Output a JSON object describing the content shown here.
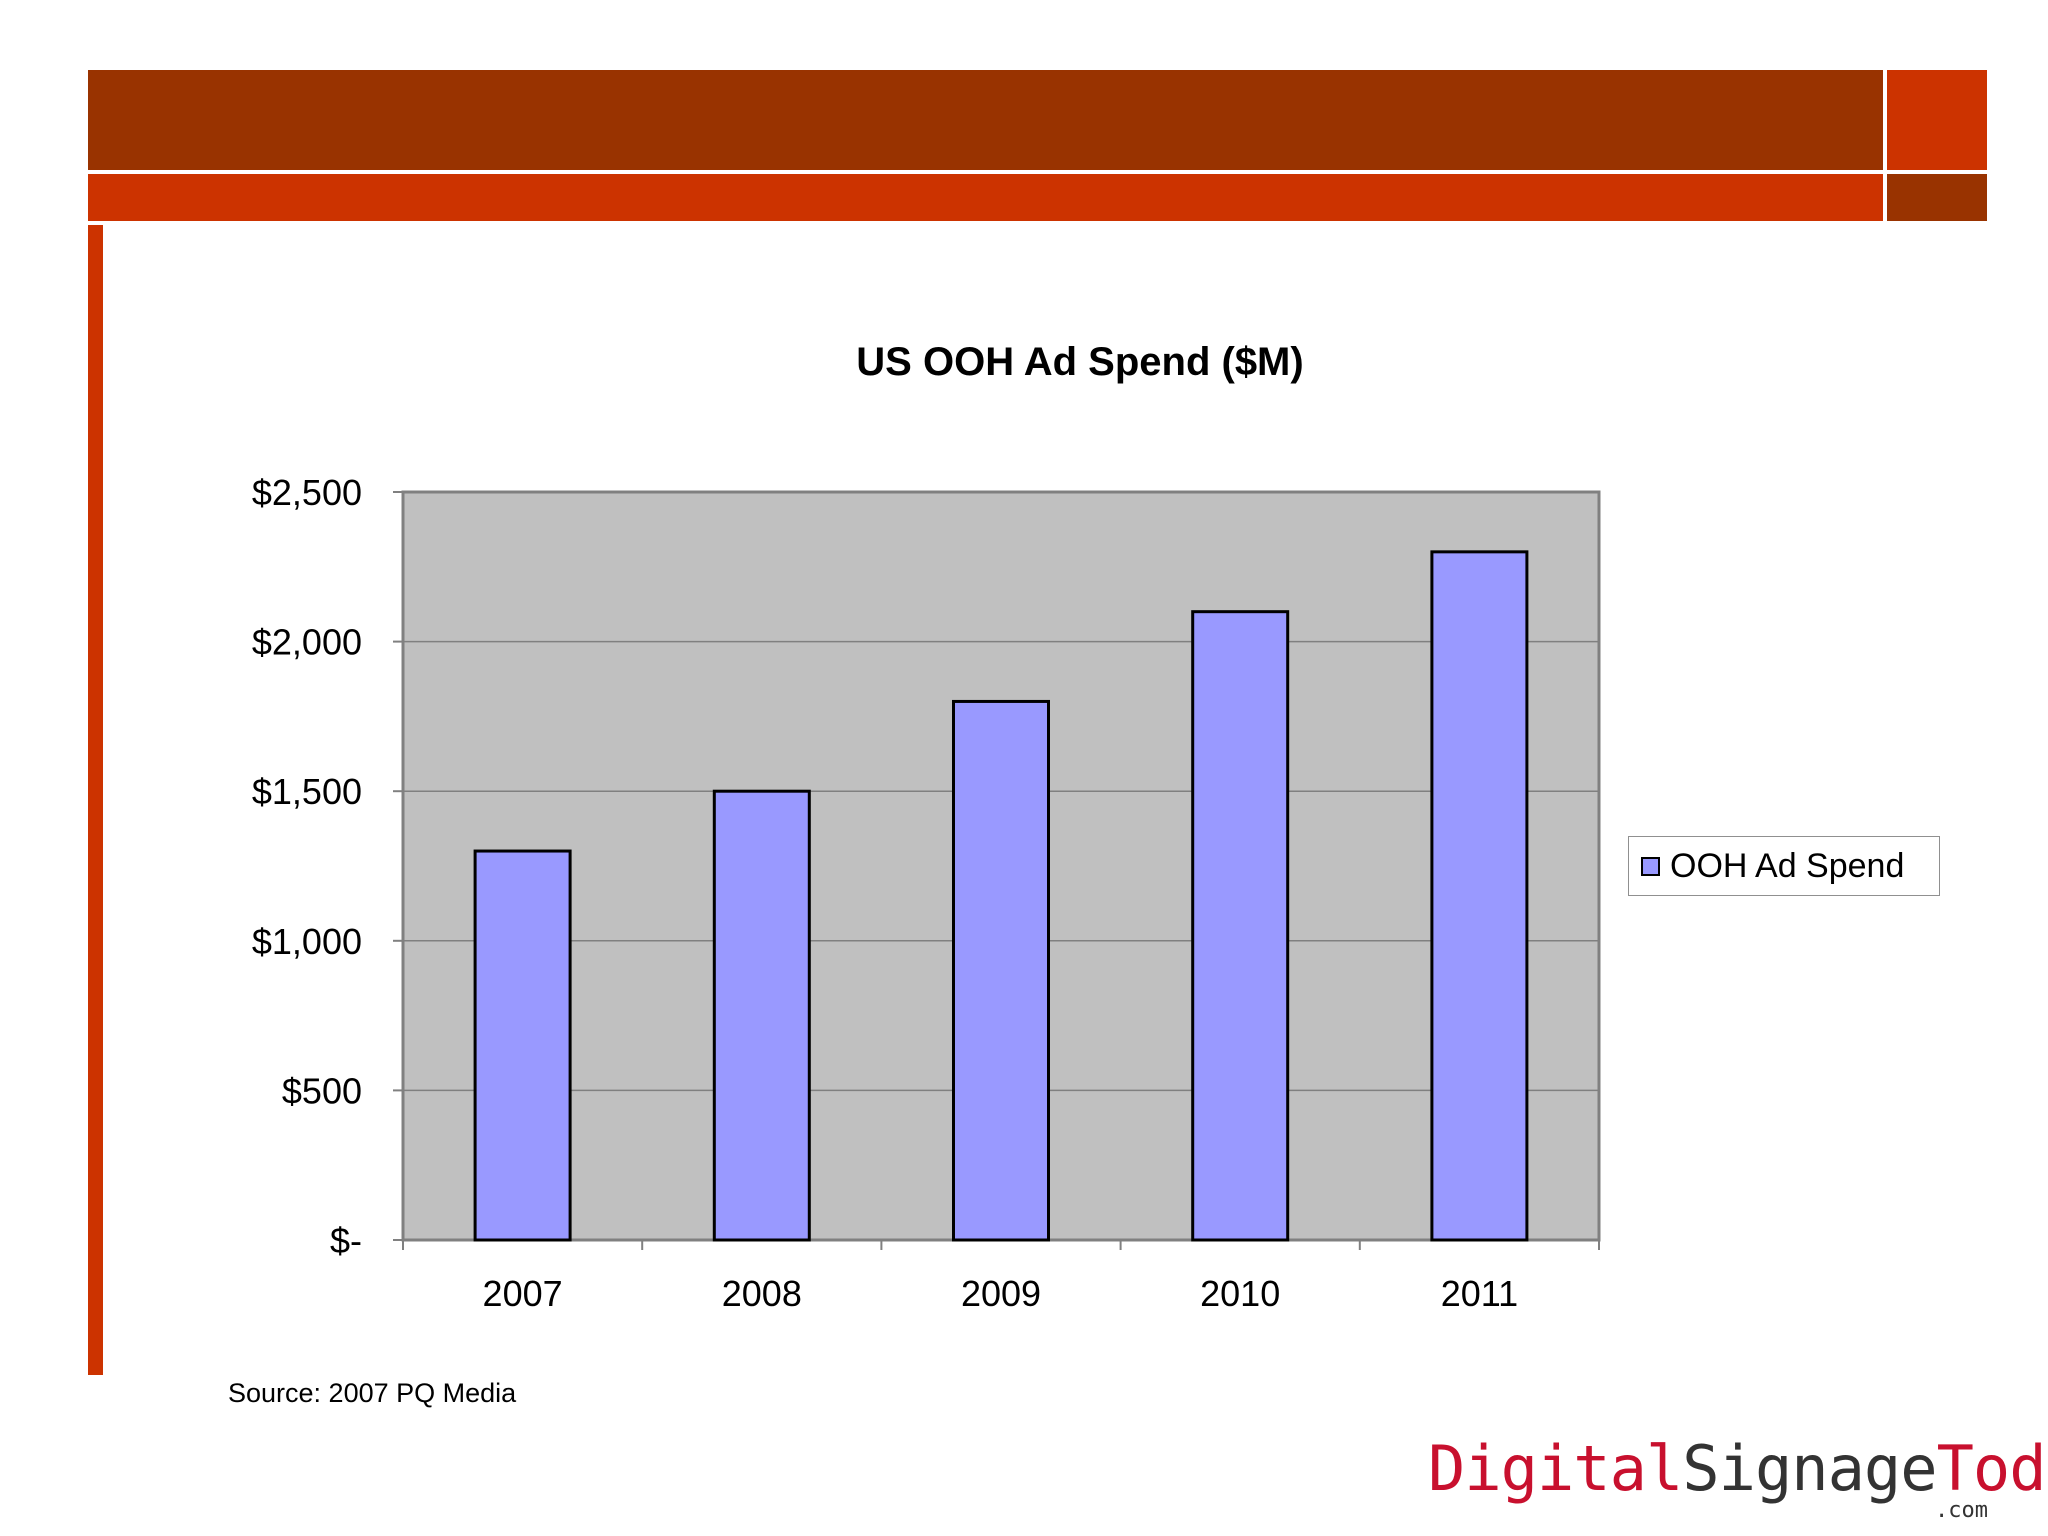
{
  "chart_data": {
    "type": "bar",
    "title": "US OOH Ad Spend ($M)",
    "categories": [
      "2007",
      "2008",
      "2009",
      "2010",
      "2011"
    ],
    "series": [
      {
        "name": "OOH Ad Spend",
        "values": [
          1300,
          1500,
          1800,
          2100,
          2300
        ],
        "color": "#9999ff"
      }
    ],
    "ylim": [
      0,
      2500
    ],
    "yticks": [
      0,
      500,
      1000,
      1500,
      2000,
      2500
    ],
    "ytick_labels": [
      "$-",
      "$500",
      "$1,000",
      "$1,500",
      "$2,000",
      "$2,500"
    ],
    "xlabel": "",
    "ylabel": "",
    "grid": true,
    "plot_background": "#c0c0c0",
    "legend_position": "right"
  },
  "source_note": "Source:  2007 PQ Media",
  "brand": {
    "part1": "Digital",
    "part2": "Signage",
    "part3": "Today",
    "suffix": ".com",
    "red": "#c8102e",
    "dark": "#333333"
  },
  "theme": {
    "dark_red": "#993300",
    "orange_red": "#cc3300"
  }
}
